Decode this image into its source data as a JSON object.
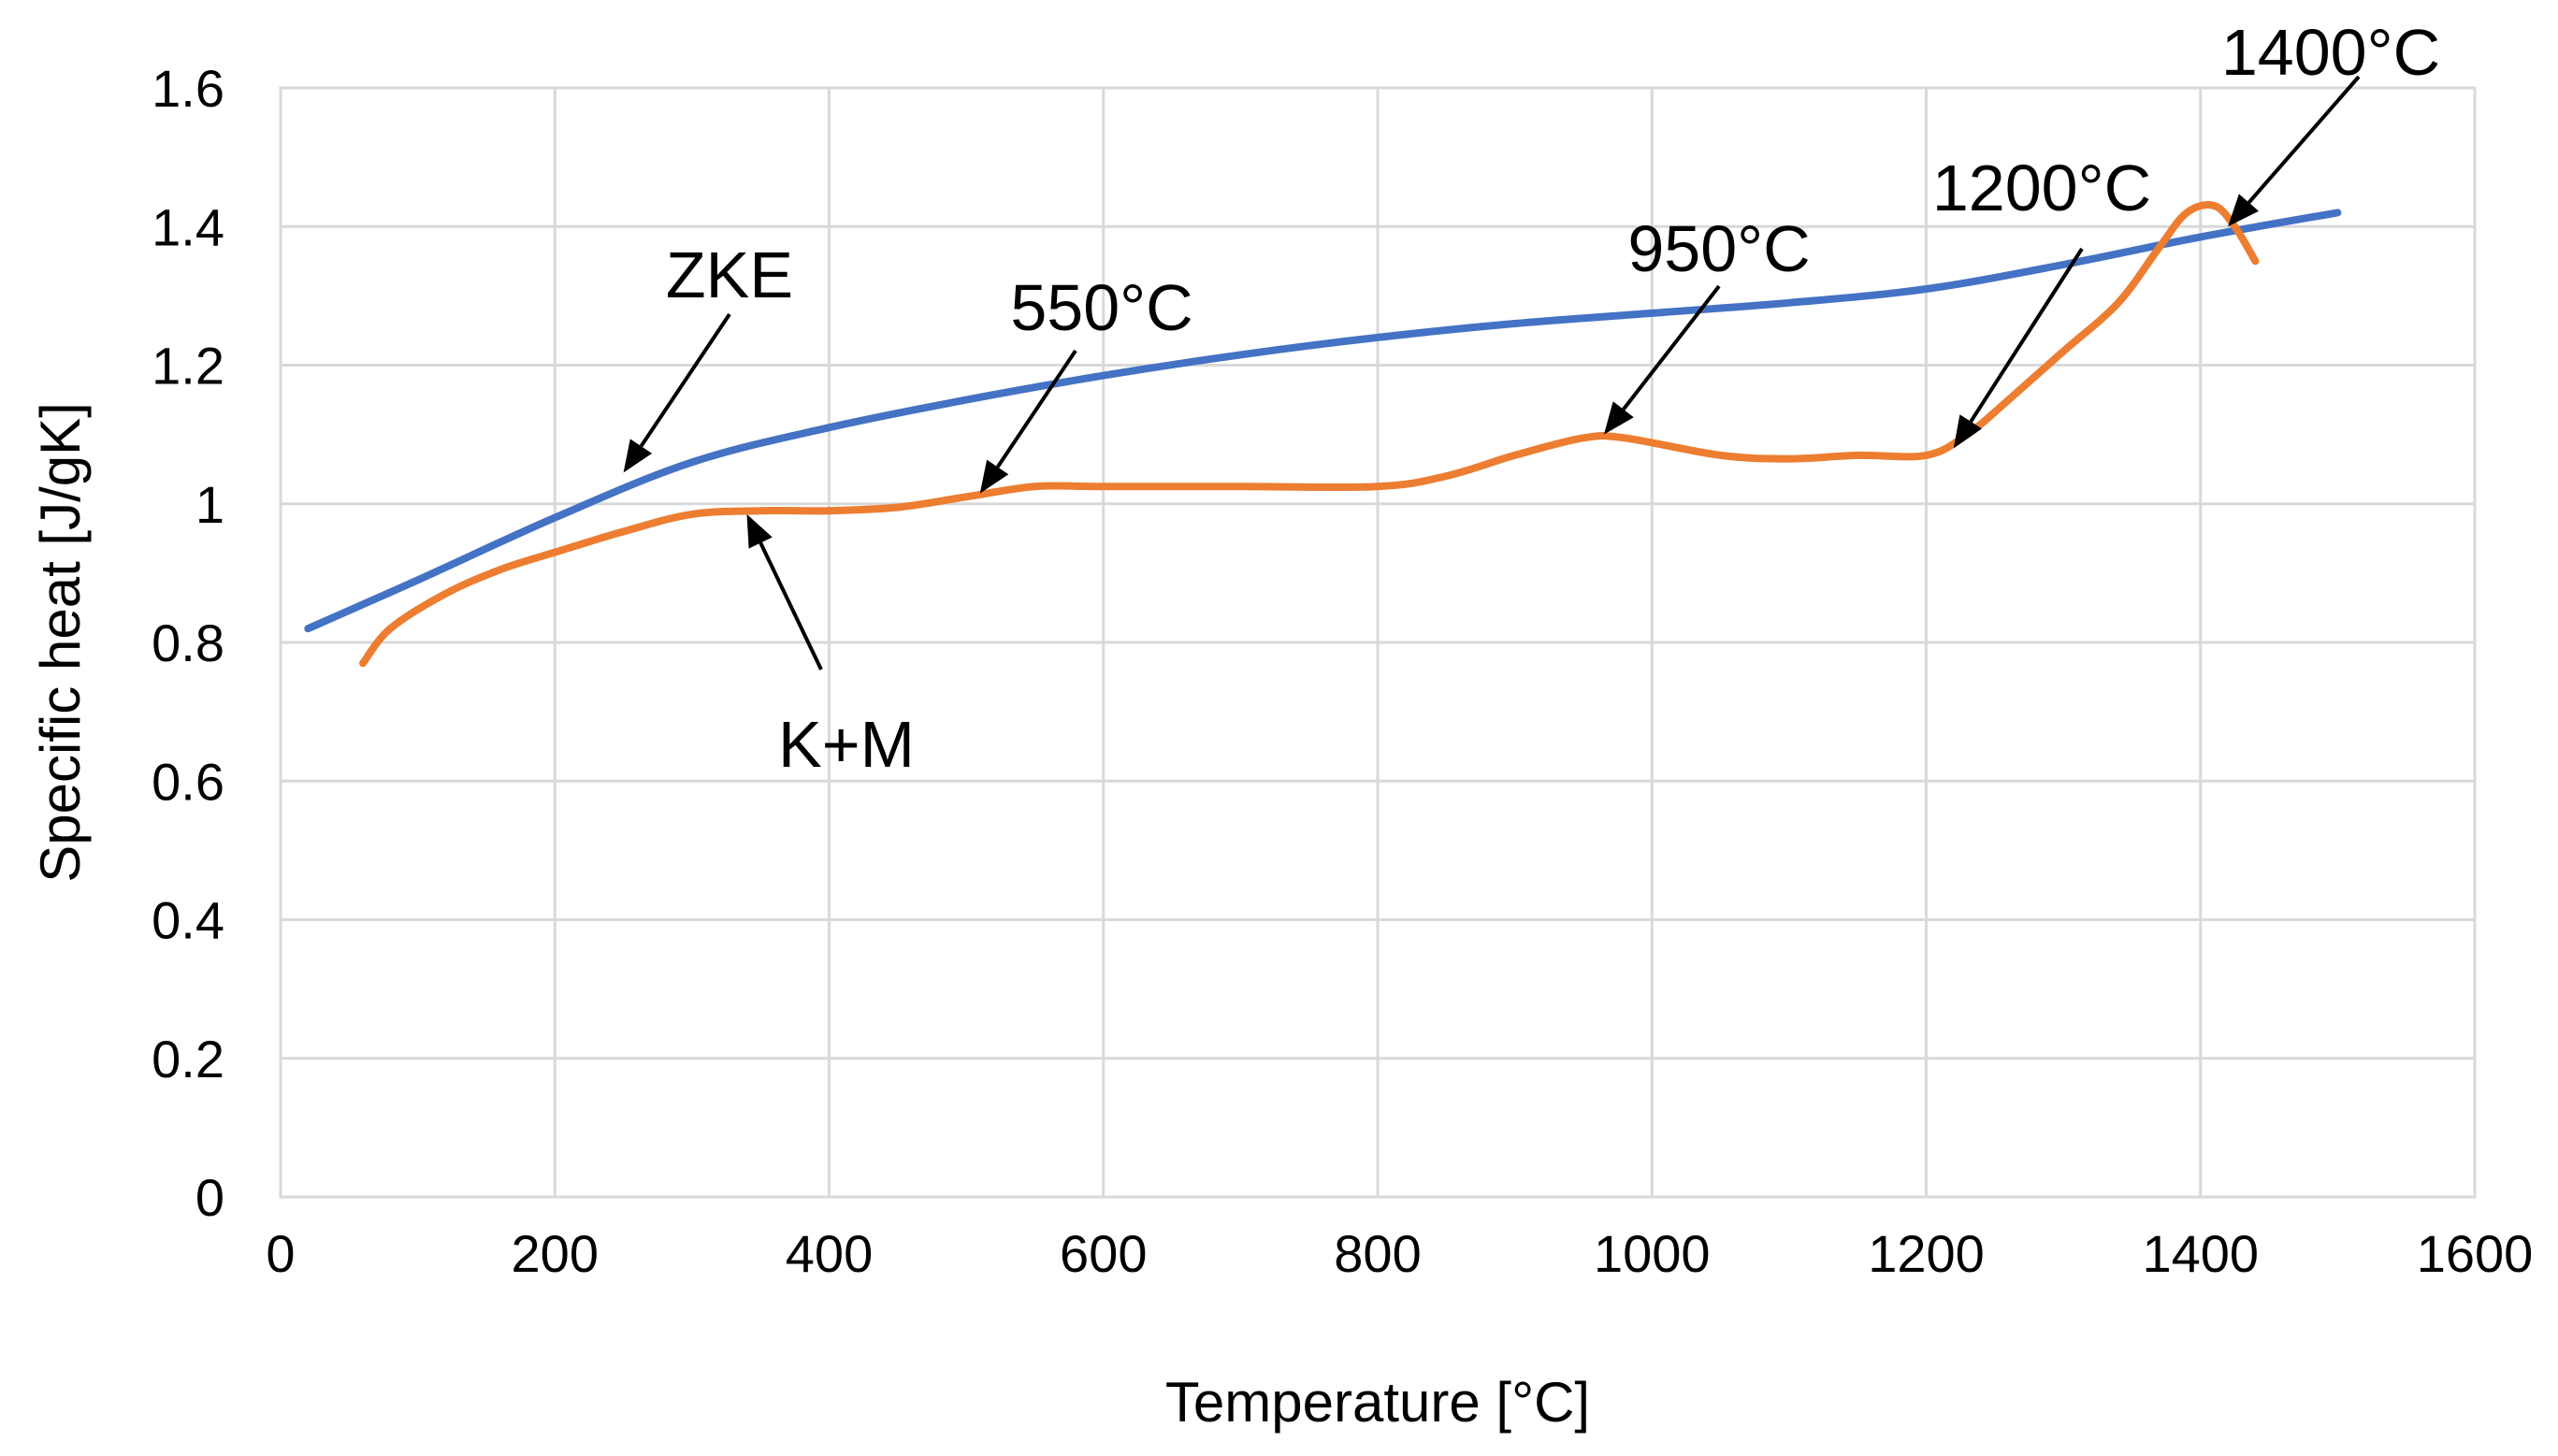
{
  "chart_data": {
    "type": "line",
    "title": "",
    "xlabel": "Temperature [°C]",
    "ylabel": "Specific heat [J/gK]",
    "xlim": [
      0,
      1600
    ],
    "ylim": [
      0,
      1.6
    ],
    "xticks": [
      "0",
      "200",
      "400",
      "600",
      "800",
      "1000",
      "1200",
      "1400",
      "1600"
    ],
    "yticks": [
      "0",
      "0.2",
      "0.4",
      "0.6",
      "0.8",
      "1",
      "1.2",
      "1.4",
      "1.6"
    ],
    "xtick_values": [
      0,
      200,
      400,
      600,
      800,
      1000,
      1200,
      1400,
      1600
    ],
    "ytick_values": [
      0,
      0.2,
      0.4,
      0.6,
      0.8,
      1.0,
      1.2,
      1.4,
      1.6
    ],
    "grid": true,
    "series": [
      {
        "name": "ZKE",
        "color": "#4472c4",
        "x": [
          20,
          100,
          200,
          300,
          400,
          500,
          600,
          700,
          800,
          900,
          1000,
          1100,
          1200,
          1300,
          1400,
          1500
        ],
        "y": [
          0.82,
          0.89,
          0.98,
          1.06,
          1.11,
          1.15,
          1.185,
          1.215,
          1.24,
          1.26,
          1.275,
          1.29,
          1.31,
          1.345,
          1.385,
          1.42
        ]
      },
      {
        "name": "K+M",
        "color": "#ed7d31",
        "x": [
          60,
          80,
          120,
          160,
          200,
          250,
          300,
          350,
          400,
          450,
          500,
          550,
          600,
          700,
          800,
          850,
          900,
          950,
          980,
          1050,
          1100,
          1150,
          1200,
          1230,
          1260,
          1300,
          1340,
          1370,
          1390,
          1410,
          1425,
          1440
        ],
        "y": [
          0.77,
          0.82,
          0.87,
          0.905,
          0.93,
          0.96,
          0.985,
          0.99,
          0.99,
          0.995,
          1.01,
          1.025,
          1.025,
          1.025,
          1.025,
          1.04,
          1.07,
          1.095,
          1.095,
          1.07,
          1.065,
          1.07,
          1.07,
          1.1,
          1.15,
          1.22,
          1.29,
          1.37,
          1.42,
          1.43,
          1.4,
          1.35
        ]
      }
    ],
    "annotations": [
      {
        "text": "ZKE",
        "points_to": [
          250,
          1.045
        ]
      },
      {
        "text": "550°C",
        "points_to": [
          510,
          1.015
        ]
      },
      {
        "text": "950°C",
        "points_to": [
          965,
          1.1
        ]
      },
      {
        "text": "1200°C",
        "points_to": [
          1220,
          1.08
        ]
      },
      {
        "text": "1400°C",
        "points_to": [
          1420,
          1.4
        ]
      },
      {
        "text": "K+M",
        "points_to": [
          340,
          0.985
        ]
      }
    ]
  }
}
